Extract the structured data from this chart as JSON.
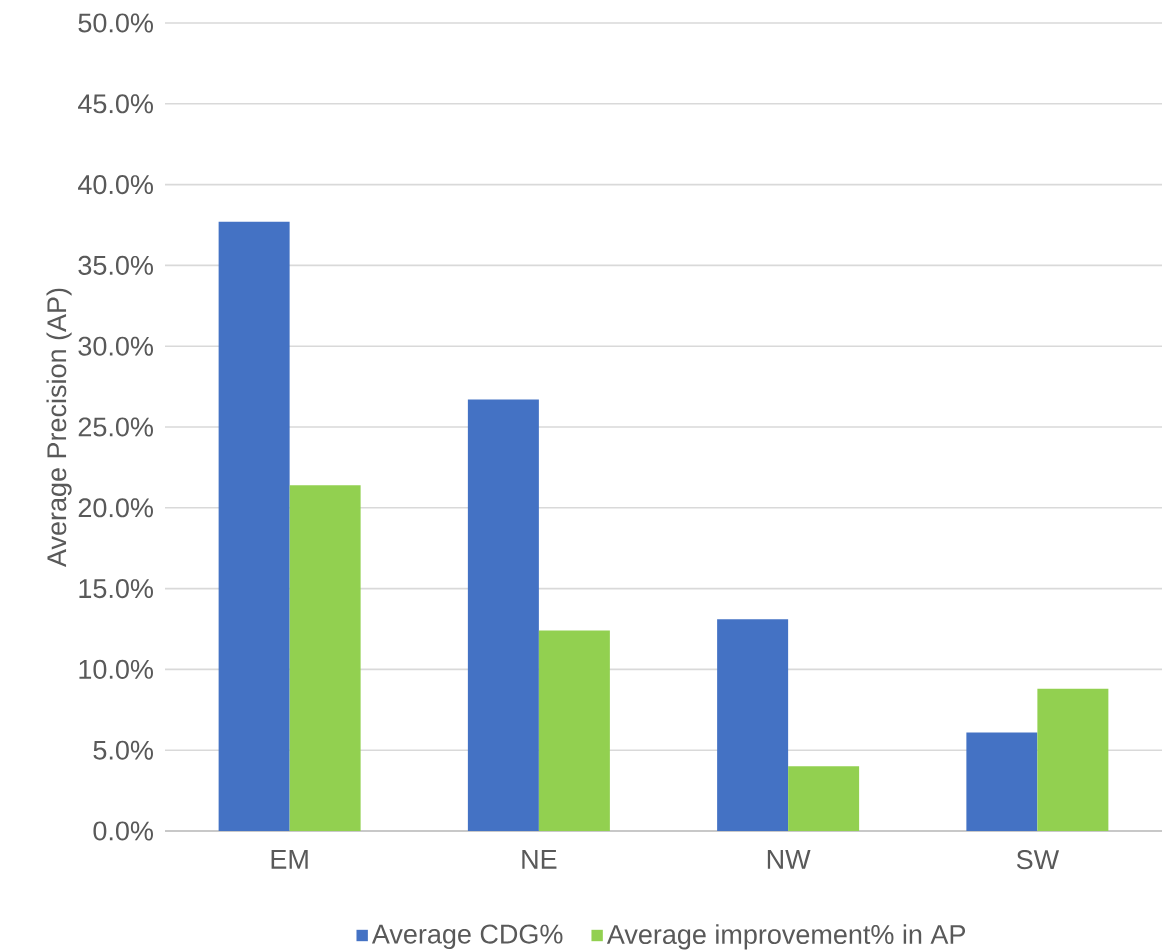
{
  "chart_data": {
    "type": "bar",
    "ylabel": "Average Precision (AP)",
    "categories": [
      "EM",
      "NE",
      "NW",
      "SW"
    ],
    "series": [
      {
        "name": "Average CDG%",
        "color": "#4472c4",
        "values": [
          37.7,
          26.7,
          13.1,
          6.1
        ]
      },
      {
        "name": "Average improvement% in AP",
        "color": "#92d050",
        "values": [
          21.4,
          12.4,
          4.0,
          8.8
        ]
      }
    ],
    "ylim": [
      0,
      50
    ],
    "yticks": [
      {
        "value": 0,
        "label": "0.0%"
      },
      {
        "value": 5,
        "label": "5.0%"
      },
      {
        "value": 10,
        "label": "10.0%"
      },
      {
        "value": 15,
        "label": "15.0%"
      },
      {
        "value": 20,
        "label": "20.0%"
      },
      {
        "value": 25,
        "label": "25.0%"
      },
      {
        "value": 30,
        "label": "30.0%"
      },
      {
        "value": 35,
        "label": "35.0%"
      },
      {
        "value": 40,
        "label": "40.0%"
      },
      {
        "value": 45,
        "label": "45.0%"
      },
      {
        "value": 50,
        "label": "50.0%"
      }
    ],
    "grid": "y",
    "legend": "bottom"
  }
}
